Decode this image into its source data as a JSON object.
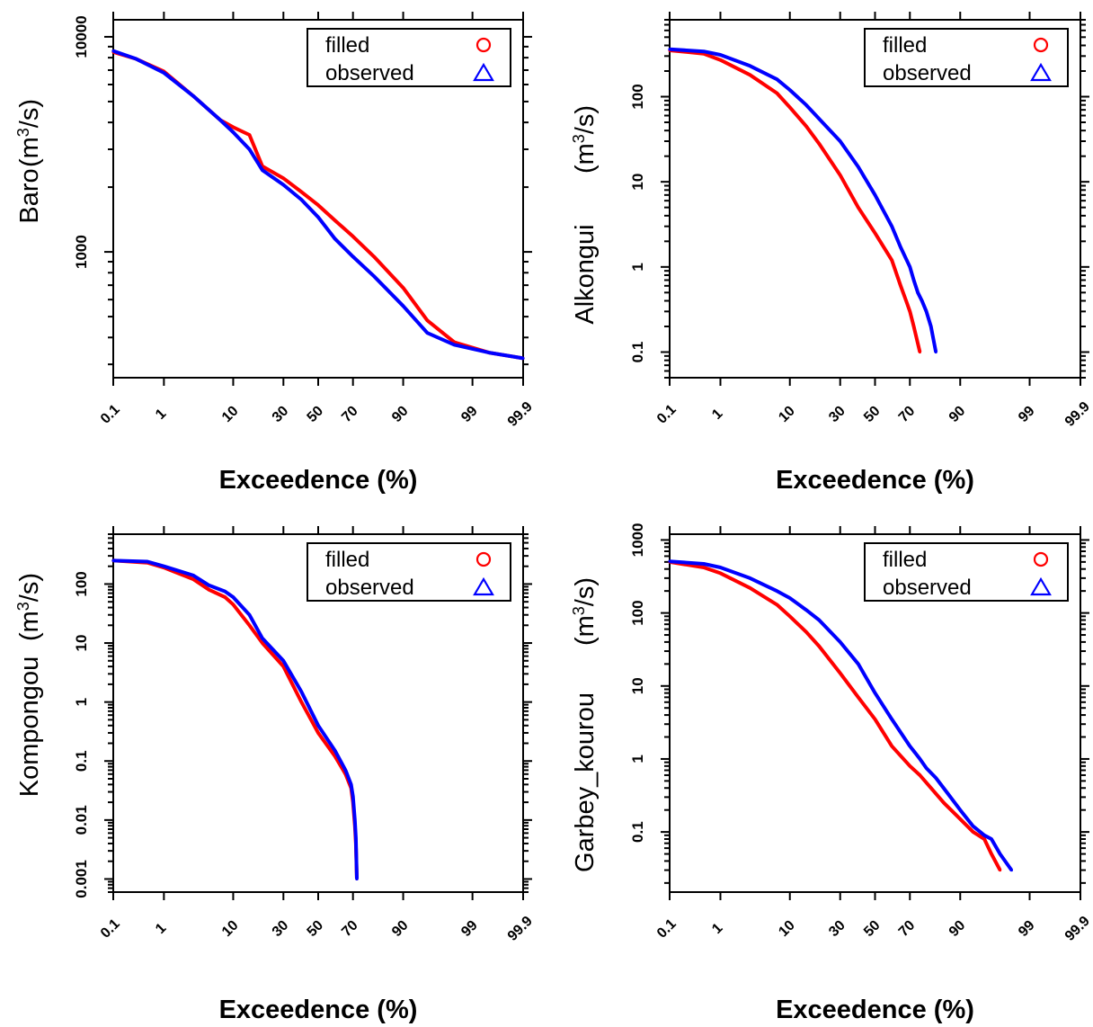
{
  "colors": {
    "filled": "#ff0000",
    "observed": "#0000ff"
  },
  "chart_data": [
    {
      "type": "line",
      "ylabel": "Baro",
      "ylabel_unit": "(m3/s)",
      "xlabel": "Exceedence (%)",
      "x_scale": "normal-probability",
      "y_scale": "log",
      "xlim": [
        0.1,
        99.9
      ],
      "ylim": [
        260,
        12000
      ],
      "xticks": [
        "0.1",
        "1",
        "10",
        "30",
        "50",
        "70",
        "90",
        "99",
        "99.9"
      ],
      "yticks": [
        {
          "value": 1000,
          "label": "1000"
        },
        {
          "value": 10000,
          "label": "10000"
        }
      ],
      "legend": {
        "position": "top-right",
        "entries": [
          {
            "label": "filled",
            "marker": "circle"
          },
          {
            "label": "observed",
            "marker": "triangle"
          }
        ]
      },
      "series": [
        {
          "name": "filled",
          "points": [
            [
              0.1,
              8500
            ],
            [
              0.3,
              7900
            ],
            [
              1,
              6900
            ],
            [
              3,
              5300
            ],
            [
              7,
              4100
            ],
            [
              10,
              3800
            ],
            [
              15,
              3500
            ],
            [
              20,
              2500
            ],
            [
              30,
              2200
            ],
            [
              40,
              1900
            ],
            [
              50,
              1650
            ],
            [
              60,
              1400
            ],
            [
              70,
              1180
            ],
            [
              80,
              950
            ],
            [
              90,
              680
            ],
            [
              95,
              480
            ],
            [
              98,
              380
            ],
            [
              99.5,
              340
            ],
            [
              99.9,
              320
            ]
          ]
        },
        {
          "name": "observed",
          "points": [
            [
              0.1,
              8600
            ],
            [
              0.3,
              7900
            ],
            [
              1,
              6800
            ],
            [
              3,
              5300
            ],
            [
              7,
              4100
            ],
            [
              10,
              3600
            ],
            [
              15,
              3000
            ],
            [
              20,
              2400
            ],
            [
              30,
              2050
            ],
            [
              40,
              1750
            ],
            [
              50,
              1450
            ],
            [
              60,
              1150
            ],
            [
              70,
              950
            ],
            [
              80,
              770
            ],
            [
              90,
              560
            ],
            [
              95,
              420
            ],
            [
              98,
              370
            ],
            [
              99.5,
              340
            ],
            [
              99.9,
              320
            ]
          ]
        }
      ]
    },
    {
      "type": "line",
      "ylabel": "Alkongui",
      "ylabel_unit": "(m3/s)",
      "xlabel": "Exceedence (%)",
      "x_scale": "normal-probability",
      "y_scale": "log",
      "xlim": [
        0.1,
        99.9
      ],
      "ylim": [
        0.05,
        800
      ],
      "xticks": [
        "0.1",
        "1",
        "10",
        "30",
        "50",
        "70",
        "90",
        "99",
        "99.9"
      ],
      "yticks": [
        {
          "value": 0.1,
          "label": "0.1"
        },
        {
          "value": 1,
          "label": "1"
        },
        {
          "value": 10,
          "label": "10"
        },
        {
          "value": 100,
          "label": "100"
        }
      ],
      "legend": {
        "position": "top-right",
        "entries": [
          {
            "label": "filled",
            "marker": "circle"
          },
          {
            "label": "observed",
            "marker": "triangle"
          }
        ]
      },
      "series": [
        {
          "name": "filled",
          "points": [
            [
              0.1,
              350
            ],
            [
              0.5,
              320
            ],
            [
              1,
              270
            ],
            [
              3,
              180
            ],
            [
              7,
              110
            ],
            [
              10,
              75
            ],
            [
              15,
              45
            ],
            [
              20,
              28
            ],
            [
              30,
              12
            ],
            [
              40,
              5
            ],
            [
              50,
              2.5
            ],
            [
              60,
              1.2
            ],
            [
              65,
              0.6
            ],
            [
              68,
              0.4
            ],
            [
              70,
              0.3
            ],
            [
              72,
              0.2
            ],
            [
              75,
              0.1
            ]
          ]
        },
        {
          "name": "observed",
          "points": [
            [
              0.1,
              360
            ],
            [
              0.5,
              340
            ],
            [
              1,
              310
            ],
            [
              3,
              230
            ],
            [
              7,
              160
            ],
            [
              10,
              120
            ],
            [
              15,
              80
            ],
            [
              20,
              55
            ],
            [
              30,
              30
            ],
            [
              40,
              15
            ],
            [
              50,
              7
            ],
            [
              60,
              3
            ],
            [
              65,
              1.7
            ],
            [
              70,
              1
            ],
            [
              72,
              0.7
            ],
            [
              74,
              0.5
            ],
            [
              76,
              0.4
            ],
            [
              78,
              0.3
            ],
            [
              80,
              0.2
            ],
            [
              82,
              0.1
            ]
          ]
        }
      ]
    },
    {
      "type": "line",
      "ylabel": "Kompongou",
      "ylabel_unit": "(m3/s)",
      "xlabel": "Exceedence (%)",
      "x_scale": "normal-probability",
      "y_scale": "log",
      "xlim": [
        0.1,
        99.9
      ],
      "ylim": [
        0.0006,
        700
      ],
      "xticks": [
        "0.1",
        "1",
        "10",
        "30",
        "50",
        "70",
        "90",
        "99",
        "99.9"
      ],
      "yticks": [
        {
          "value": 0.001,
          "label": "0.001"
        },
        {
          "value": 0.01,
          "label": "0.01"
        },
        {
          "value": 0.1,
          "label": "0.1"
        },
        {
          "value": 1,
          "label": "1"
        },
        {
          "value": 10,
          "label": "10"
        },
        {
          "value": 100,
          "label": "100"
        }
      ],
      "legend": {
        "position": "top-right",
        "entries": [
          {
            "label": "filled",
            "marker": "circle"
          },
          {
            "label": "observed",
            "marker": "triangle"
          }
        ]
      },
      "series": [
        {
          "name": "filled",
          "points": [
            [
              0.1,
              250
            ],
            [
              0.5,
              230
            ],
            [
              1,
              190
            ],
            [
              3,
              120
            ],
            [
              5,
              80
            ],
            [
              8,
              60
            ],
            [
              10,
              45
            ],
            [
              15,
              20
            ],
            [
              20,
              10
            ],
            [
              30,
              4
            ],
            [
              40,
              1
            ],
            [
              50,
              0.3
            ],
            [
              60,
              0.12
            ],
            [
              66,
              0.06
            ],
            [
              69,
              0.035
            ],
            [
              70,
              0.02
            ],
            [
              71,
              0.008
            ],
            [
              71.5,
              0.004
            ],
            [
              72,
              0.001
            ]
          ]
        },
        {
          "name": "observed",
          "points": [
            [
              0.1,
              250
            ],
            [
              0.5,
              240
            ],
            [
              1,
              200
            ],
            [
              3,
              140
            ],
            [
              5,
              95
            ],
            [
              8,
              75
            ],
            [
              10,
              60
            ],
            [
              15,
              30
            ],
            [
              20,
              12
            ],
            [
              30,
              5
            ],
            [
              40,
              1.5
            ],
            [
              50,
              0.4
            ],
            [
              60,
              0.15
            ],
            [
              66,
              0.07
            ],
            [
              69,
              0.04
            ],
            [
              70,
              0.025
            ],
            [
              71,
              0.01
            ],
            [
              71.5,
              0.005
            ],
            [
              72,
              0.001
            ]
          ]
        }
      ]
    },
    {
      "type": "line",
      "ylabel": "Garbey_kourou",
      "ylabel_unit": "(m3/s)",
      "xlabel": "Exceedence (%)",
      "x_scale": "normal-probability",
      "y_scale": "log",
      "xlim": [
        0.1,
        99.9
      ],
      "ylim": [
        0.015,
        1200
      ],
      "xticks": [
        "0.1",
        "1",
        "10",
        "30",
        "50",
        "70",
        "90",
        "99",
        "99.9"
      ],
      "yticks": [
        {
          "value": 0.1,
          "label": "0.1"
        },
        {
          "value": 1,
          "label": "1"
        },
        {
          "value": 10,
          "label": "10"
        },
        {
          "value": 100,
          "label": "100"
        },
        {
          "value": 1000,
          "label": "1000"
        }
      ],
      "legend": {
        "position": "top-right",
        "entries": [
          {
            "label": "filled",
            "marker": "circle"
          },
          {
            "label": "observed",
            "marker": "triangle"
          }
        ]
      },
      "series": [
        {
          "name": "filled",
          "points": [
            [
              0.1,
              500
            ],
            [
              0.5,
              420
            ],
            [
              1,
              350
            ],
            [
              3,
              220
            ],
            [
              7,
              130
            ],
            [
              10,
              90
            ],
            [
              15,
              55
            ],
            [
              20,
              35
            ],
            [
              30,
              15
            ],
            [
              40,
              7
            ],
            [
              50,
              3.5
            ],
            [
              60,
              1.5
            ],
            [
              70,
              0.8
            ],
            [
              75,
              0.6
            ],
            [
              80,
              0.4
            ],
            [
              85,
              0.25
            ],
            [
              90,
              0.15
            ],
            [
              93,
              0.1
            ],
            [
              95,
              0.08
            ],
            [
              96,
              0.05
            ],
            [
              97,
              0.03
            ]
          ]
        },
        {
          "name": "observed",
          "points": [
            [
              0.1,
              510
            ],
            [
              0.5,
              470
            ],
            [
              1,
              420
            ],
            [
              3,
              300
            ],
            [
              7,
              200
            ],
            [
              10,
              160
            ],
            [
              15,
              110
            ],
            [
              20,
              80
            ],
            [
              30,
              40
            ],
            [
              40,
              20
            ],
            [
              50,
              8
            ],
            [
              60,
              3.5
            ],
            [
              70,
              1.5
            ],
            [
              75,
              1
            ],
            [
              78,
              0.75
            ],
            [
              82,
              0.55
            ],
            [
              86,
              0.35
            ],
            [
              90,
              0.2
            ],
            [
              93,
              0.12
            ],
            [
              95,
              0.09
            ],
            [
              96,
              0.08
            ],
            [
              97,
              0.05
            ],
            [
              98,
              0.03
            ]
          ]
        }
      ]
    }
  ]
}
